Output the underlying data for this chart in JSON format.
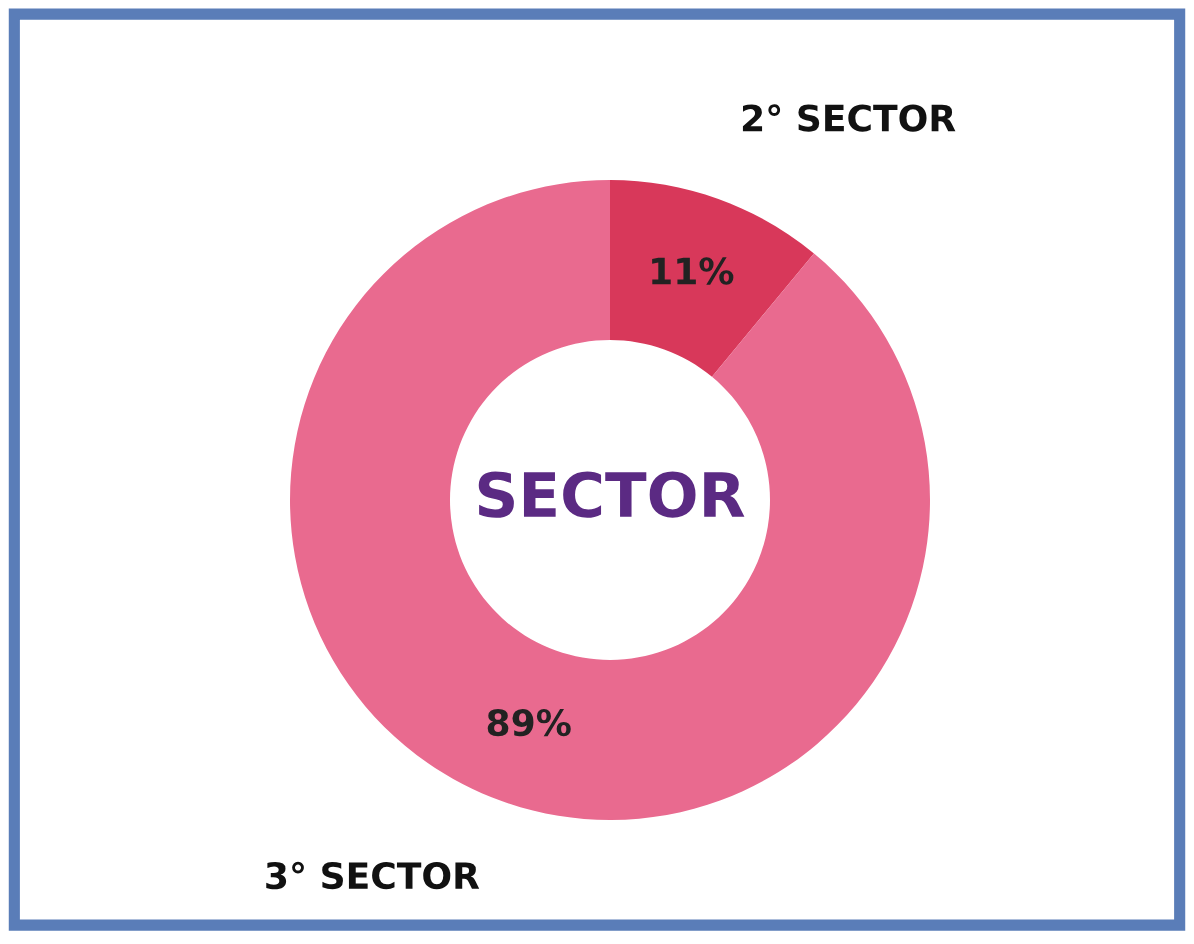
{
  "chart_data": {
    "type": "donut",
    "title": "SECTOR",
    "categories": [
      "2° SECTOR",
      "3° SECTOR"
    ],
    "values": [
      11,
      89
    ],
    "colors": [
      "#d8385a",
      "#e96a8f"
    ],
    "value_labels": [
      "11%",
      "89%"
    ],
    "legend": false
  }
}
